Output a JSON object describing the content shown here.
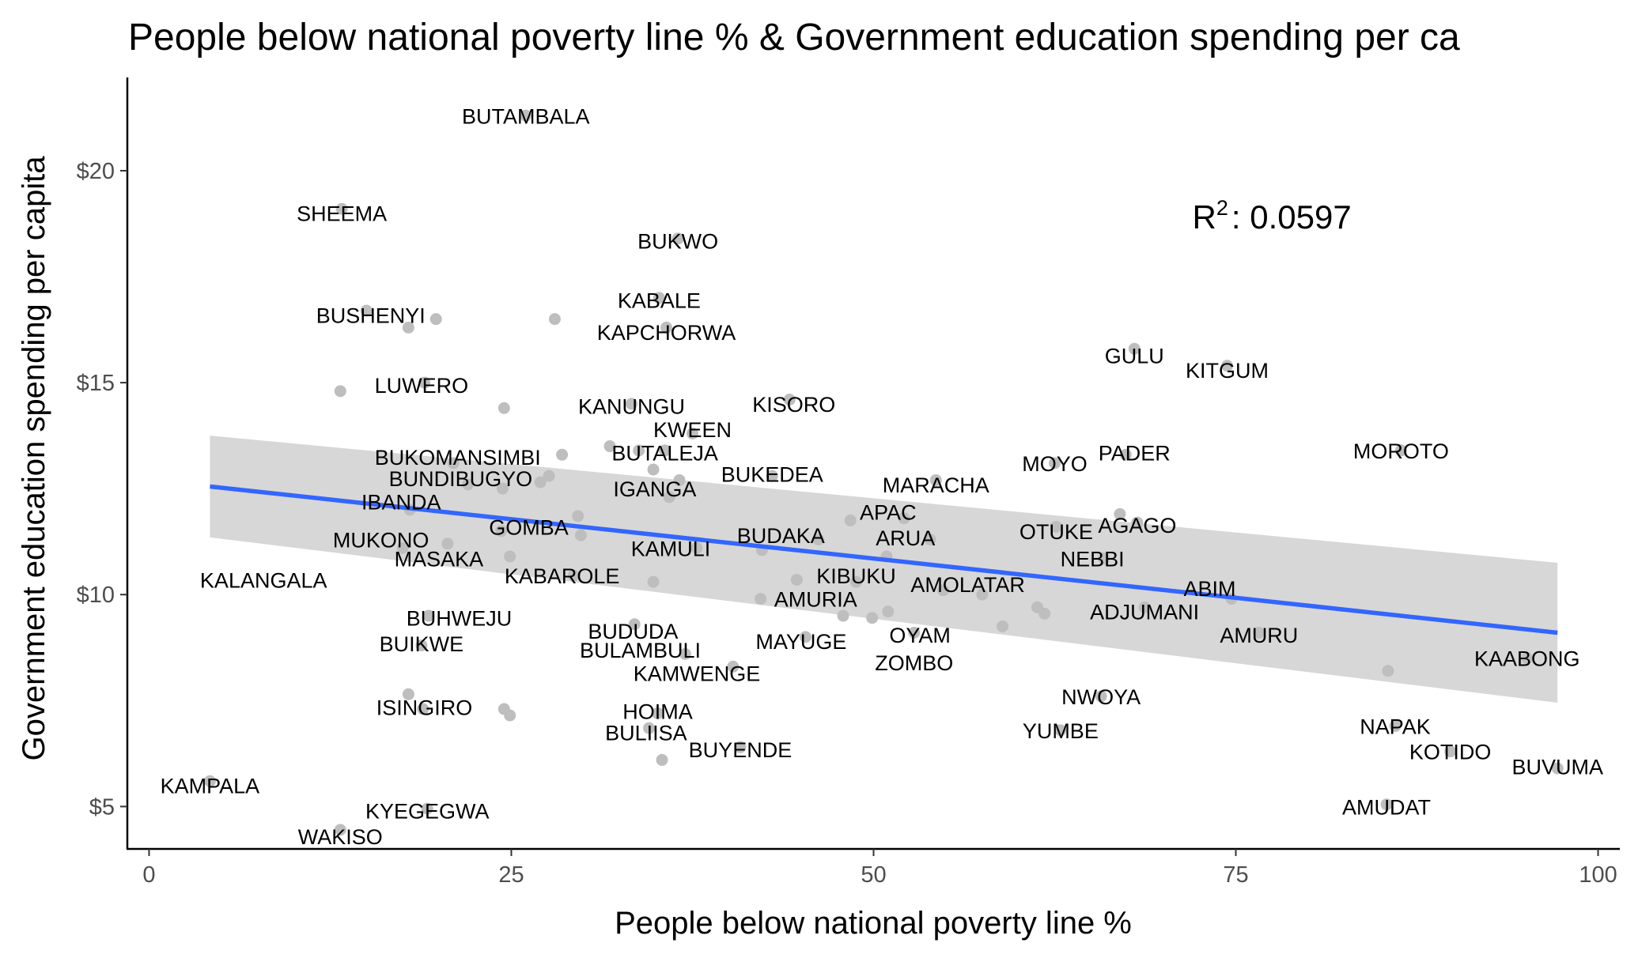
{
  "chart_data": {
    "type": "scatter",
    "title": "People below national poverty line % & Government education spending per ca",
    "xlabel": "People below national poverty line %",
    "ylabel": "Government education spending per capita",
    "xlim": [
      -1.5,
      101.5
    ],
    "ylim": [
      4.0,
      22.2
    ],
    "x_ticks": [
      0,
      25,
      50,
      75,
      100
    ],
    "x_tick_labels": [
      "0",
      "25",
      "50",
      "75",
      "100"
    ],
    "y_ticks": [
      5,
      10,
      15,
      20
    ],
    "y_tick_labels": [
      "$5",
      "$10",
      "$15",
      "$20"
    ],
    "grid": false,
    "annotation": {
      "r2_label": "R",
      "r2_sup": "2",
      "r2_value": ": 0.0597",
      "x": 72,
      "y": 18.9
    },
    "trend_line": {
      "x": [
        4.2,
        97.2
      ],
      "y": [
        12.55,
        9.1
      ]
    },
    "confidence_band": {
      "x": [
        4.2,
        97.2
      ],
      "upper": [
        13.75,
        10.75
      ],
      "lower": [
        11.35,
        7.45
      ]
    },
    "colors": {
      "points": "#bebebe",
      "trend": "#3366ff",
      "band": "#d3d3d3",
      "text": "#000000",
      "tick": "#4d4d4d"
    },
    "points": [
      {
        "x": 26.0,
        "y": 21.3
      },
      {
        "x": 13.3,
        "y": 19.1
      },
      {
        "x": 36.5,
        "y": 18.4
      },
      {
        "x": 17.9,
        "y": 16.3
      },
      {
        "x": 19.8,
        "y": 16.5
      },
      {
        "x": 28.0,
        "y": 16.5
      },
      {
        "x": 35.2,
        "y": 17.0
      },
      {
        "x": 35.7,
        "y": 16.3
      },
      {
        "x": 15.0,
        "y": 16.7
      },
      {
        "x": 68.0,
        "y": 15.8
      },
      {
        "x": 74.4,
        "y": 15.4
      },
      {
        "x": 13.2,
        "y": 14.8
      },
      {
        "x": 24.5,
        "y": 14.4
      },
      {
        "x": 19.0,
        "y": 15.0
      },
      {
        "x": 33.3,
        "y": 14.5
      },
      {
        "x": 44.2,
        "y": 14.6
      },
      {
        "x": 37.5,
        "y": 13.8
      },
      {
        "x": 31.8,
        "y": 13.5
      },
      {
        "x": 33.8,
        "y": 13.4
      },
      {
        "x": 35.6,
        "y": 13.4
      },
      {
        "x": 28.5,
        "y": 13.3
      },
      {
        "x": 21.0,
        "y": 13.1
      },
      {
        "x": 34.8,
        "y": 12.95
      },
      {
        "x": 36.6,
        "y": 12.7
      },
      {
        "x": 27.6,
        "y": 12.8
      },
      {
        "x": 22.0,
        "y": 12.6
      },
      {
        "x": 24.4,
        "y": 12.5
      },
      {
        "x": 27.0,
        "y": 12.65
      },
      {
        "x": 35.9,
        "y": 12.3
      },
      {
        "x": 43.0,
        "y": 12.8
      },
      {
        "x": 62.5,
        "y": 13.1
      },
      {
        "x": 67.4,
        "y": 13.3
      },
      {
        "x": 86.4,
        "y": 13.4
      },
      {
        "x": 54.3,
        "y": 12.7
      },
      {
        "x": 18.0,
        "y": 12.0
      },
      {
        "x": 29.6,
        "y": 11.85
      },
      {
        "x": 48.4,
        "y": 11.75
      },
      {
        "x": 52.1,
        "y": 11.8
      },
      {
        "x": 67.0,
        "y": 11.9
      },
      {
        "x": 68.2,
        "y": 11.7
      },
      {
        "x": 62.6,
        "y": 11.6
      },
      {
        "x": 24.3,
        "y": 11.5
      },
      {
        "x": 29.8,
        "y": 11.4
      },
      {
        "x": 53.9,
        "y": 11.3
      },
      {
        "x": 17.5,
        "y": 11.1
      },
      {
        "x": 20.6,
        "y": 11.2
      },
      {
        "x": 37.8,
        "y": 11.1
      },
      {
        "x": 42.3,
        "y": 11.05
      },
      {
        "x": 46.2,
        "y": 11.3
      },
      {
        "x": 24.9,
        "y": 10.9
      },
      {
        "x": 50.9,
        "y": 10.9
      },
      {
        "x": 65.9,
        "y": 10.85
      },
      {
        "x": 29.3,
        "y": 10.45
      },
      {
        "x": 34.8,
        "y": 10.3
      },
      {
        "x": 44.7,
        "y": 10.35
      },
      {
        "x": 48.8,
        "y": 10.3
      },
      {
        "x": 54.8,
        "y": 10.1
      },
      {
        "x": 57.5,
        "y": 10.0
      },
      {
        "x": 42.2,
        "y": 9.9
      },
      {
        "x": 47.9,
        "y": 9.5
      },
      {
        "x": 49.9,
        "y": 9.45
      },
      {
        "x": 51.0,
        "y": 9.6
      },
      {
        "x": 61.3,
        "y": 9.7
      },
      {
        "x": 61.8,
        "y": 9.55
      },
      {
        "x": 58.9,
        "y": 9.25
      },
      {
        "x": 68.7,
        "y": 9.7
      },
      {
        "x": 74.7,
        "y": 9.9
      },
      {
        "x": 76.6,
        "y": 9.1
      },
      {
        "x": 52.8,
        "y": 9.1
      },
      {
        "x": 45.3,
        "y": 9.0
      },
      {
        "x": 19.3,
        "y": 9.5
      },
      {
        "x": 18.8,
        "y": 8.8
      },
      {
        "x": 33.5,
        "y": 9.3
      },
      {
        "x": 37.0,
        "y": 8.6
      },
      {
        "x": 40.3,
        "y": 8.3
      },
      {
        "x": 85.5,
        "y": 8.2
      },
      {
        "x": 95.1,
        "y": 8.5
      },
      {
        "x": 65.7,
        "y": 7.6
      },
      {
        "x": 17.9,
        "y": 7.65
      },
      {
        "x": 18.9,
        "y": 7.3
      },
      {
        "x": 24.5,
        "y": 7.3
      },
      {
        "x": 24.9,
        "y": 7.15
      },
      {
        "x": 35.1,
        "y": 7.2
      },
      {
        "x": 34.5,
        "y": 6.85
      },
      {
        "x": 35.4,
        "y": 6.1
      },
      {
        "x": 40.8,
        "y": 6.4
      },
      {
        "x": 62.9,
        "y": 6.8
      },
      {
        "x": 86.0,
        "y": 6.9
      },
      {
        "x": 89.8,
        "y": 6.3
      },
      {
        "x": 97.2,
        "y": 5.9
      },
      {
        "x": 4.2,
        "y": 5.6
      },
      {
        "x": 19.2,
        "y": 4.95
      },
      {
        "x": 13.2,
        "y": 4.45
      },
      {
        "x": 85.4,
        "y": 5.05
      }
    ],
    "labels": [
      {
        "text": "BUTAMBALA",
        "x": 26.0,
        "y": 21.3
      },
      {
        "text": "SHEEMA",
        "x": 13.3,
        "y": 19.0
      },
      {
        "text": "BUKWO",
        "x": 36.5,
        "y": 18.35
      },
      {
        "text": "KABALE",
        "x": 35.2,
        "y": 16.95
      },
      {
        "text": "BUSHENYI",
        "x": 15.3,
        "y": 16.6
      },
      {
        "text": "KAPCHORWA",
        "x": 35.7,
        "y": 16.2
      },
      {
        "text": "GULU",
        "x": 68.0,
        "y": 15.65
      },
      {
        "text": "KITGUM",
        "x": 74.4,
        "y": 15.3
      },
      {
        "text": "LUWERO",
        "x": 18.8,
        "y": 14.95
      },
      {
        "text": "KANUNGU",
        "x": 33.3,
        "y": 14.45
      },
      {
        "text": "KISORO",
        "x": 44.5,
        "y": 14.5
      },
      {
        "text": "KWEEN",
        "x": 37.5,
        "y": 13.9
      },
      {
        "text": "BUTALEJA",
        "x": 35.6,
        "y": 13.35
      },
      {
        "text": "BUKOMANSIMBI",
        "x": 21.3,
        "y": 13.25
      },
      {
        "text": "MOYO",
        "x": 62.5,
        "y": 13.1
      },
      {
        "text": "PADER",
        "x": 68.0,
        "y": 13.35
      },
      {
        "text": "MOROTO",
        "x": 86.4,
        "y": 13.4
      },
      {
        "text": "BUKEDEA",
        "x": 43.0,
        "y": 12.85
      },
      {
        "text": "BUNDIBUGYO",
        "x": 21.5,
        "y": 12.75
      },
      {
        "text": "MARACHA",
        "x": 54.3,
        "y": 12.6
      },
      {
        "text": "IGANGA",
        "x": 34.9,
        "y": 12.5
      },
      {
        "text": "IBANDA",
        "x": 17.4,
        "y": 12.2
      },
      {
        "text": "APAC",
        "x": 51.0,
        "y": 11.95
      },
      {
        "text": "AGAGO",
        "x": 68.2,
        "y": 11.65
      },
      {
        "text": "GOMBA",
        "x": 26.2,
        "y": 11.6
      },
      {
        "text": "OTUKE",
        "x": 62.6,
        "y": 11.5
      },
      {
        "text": "BUDAKA",
        "x": 43.6,
        "y": 11.4
      },
      {
        "text": "ARUA",
        "x": 52.2,
        "y": 11.35
      },
      {
        "text": "MUKONO",
        "x": 16.0,
        "y": 11.3
      },
      {
        "text": "KAMULI",
        "x": 36.0,
        "y": 11.1
      },
      {
        "text": "NEBBI",
        "x": 65.1,
        "y": 10.85
      },
      {
        "text": "MASAKA",
        "x": 20.0,
        "y": 10.85
      },
      {
        "text": "KABAROLE",
        "x": 28.5,
        "y": 10.45
      },
      {
        "text": "KALANGALA",
        "x": 7.9,
        "y": 10.35
      },
      {
        "text": "KIBUKU",
        "x": 48.8,
        "y": 10.45
      },
      {
        "text": "AMOLATAR",
        "x": 56.5,
        "y": 10.25
      },
      {
        "text": "ABIM",
        "x": 73.2,
        "y": 10.15
      },
      {
        "text": "AMURIA",
        "x": 46.0,
        "y": 9.9
      },
      {
        "text": "ADJUMANI",
        "x": 68.7,
        "y": 9.6
      },
      {
        "text": "BUHWEJU",
        "x": 21.4,
        "y": 9.45
      },
      {
        "text": "BUDUDA",
        "x": 33.4,
        "y": 9.15
      },
      {
        "text": "OYAM",
        "x": 53.2,
        "y": 9.05
      },
      {
        "text": "AMURU",
        "x": 76.6,
        "y": 9.05
      },
      {
        "text": "MAYUGE",
        "x": 45.0,
        "y": 8.9
      },
      {
        "text": "BUIKWE",
        "x": 18.8,
        "y": 8.85
      },
      {
        "text": "BULAMBULI",
        "x": 33.9,
        "y": 8.7
      },
      {
        "text": "KAABONG",
        "x": 95.1,
        "y": 8.5
      },
      {
        "text": "ZOMBO",
        "x": 52.8,
        "y": 8.4
      },
      {
        "text": "KAMWENGE",
        "x": 37.8,
        "y": 8.15
      },
      {
        "text": "NWOYA",
        "x": 65.7,
        "y": 7.6
      },
      {
        "text": "ISINGIRO",
        "x": 19.0,
        "y": 7.35
      },
      {
        "text": "HOIMA",
        "x": 35.1,
        "y": 7.25
      },
      {
        "text": "NAPAK",
        "x": 86.0,
        "y": 6.9
      },
      {
        "text": "YUMBE",
        "x": 62.9,
        "y": 6.8
      },
      {
        "text": "BULIISA",
        "x": 34.3,
        "y": 6.75
      },
      {
        "text": "BUYENDE",
        "x": 40.8,
        "y": 6.35
      },
      {
        "text": "KOTIDO",
        "x": 89.8,
        "y": 6.3
      },
      {
        "text": "BUVUMA",
        "x": 97.2,
        "y": 5.95
      },
      {
        "text": "KAMPALA",
        "x": 4.2,
        "y": 5.5
      },
      {
        "text": "AMUDAT",
        "x": 85.4,
        "y": 5.0
      },
      {
        "text": "KYEGEGWA",
        "x": 19.2,
        "y": 4.9
      },
      {
        "text": "WAKISO",
        "x": 13.2,
        "y": 4.3
      }
    ]
  }
}
